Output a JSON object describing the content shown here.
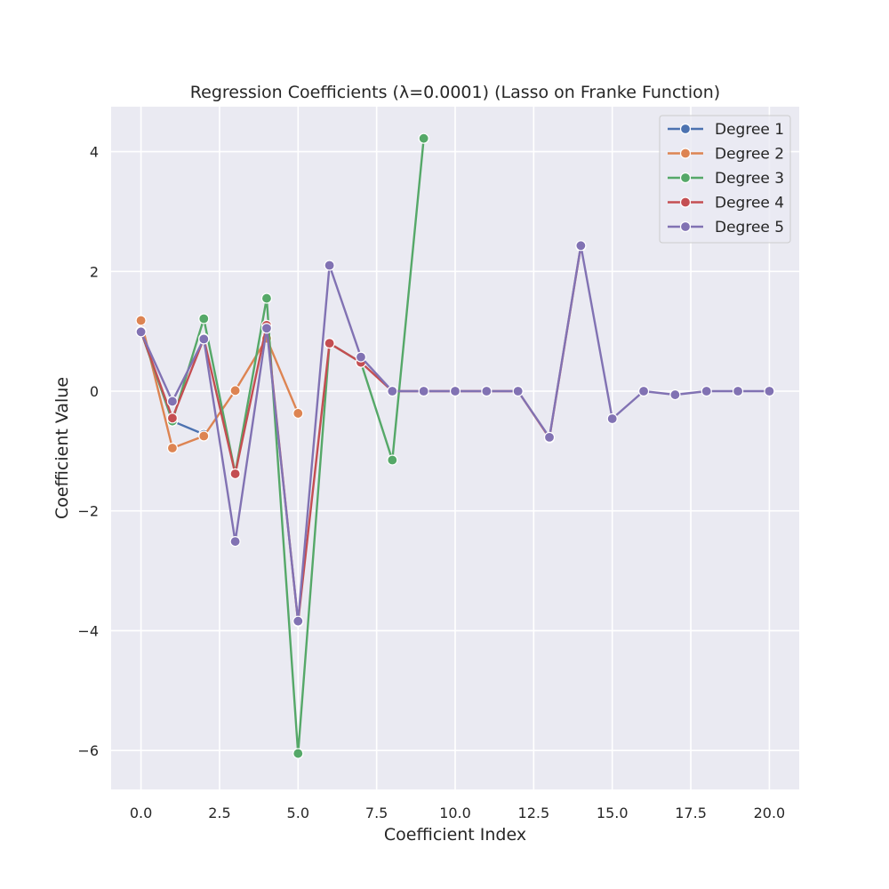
{
  "chart_data": {
    "type": "line",
    "title": "Regression Coefficients (λ=0.0001) (Lasso on Franke Function)",
    "xlabel": "Coefficient Index",
    "ylabel": "Coefficient Value",
    "xlim": [
      -0.95,
      20.95
    ],
    "ylim": [
      -6.65,
      4.75
    ],
    "xticks": [
      0.0,
      2.5,
      5.0,
      7.5,
      10.0,
      12.5,
      15.0,
      17.5,
      20.0
    ],
    "xtick_labels": [
      "0.0",
      "2.5",
      "5.0",
      "7.5",
      "10.0",
      "12.5",
      "15.0",
      "17.5",
      "20.0"
    ],
    "yticks": [
      -6,
      -4,
      -2,
      0,
      2,
      4
    ],
    "ytick_labels": [
      "−6",
      "−4",
      "−2",
      "0",
      "2",
      "4"
    ],
    "grid": true,
    "legend_position": "top-right",
    "background_color": "#eaeaf2",
    "series": [
      {
        "name": "Degree 1",
        "color": "#4c72b0",
        "x": [
          0,
          1,
          2
        ],
        "y": [
          1.0,
          -0.5,
          -0.72
        ]
      },
      {
        "name": "Degree 2",
        "color": "#dd8452",
        "x": [
          0,
          1,
          2,
          3,
          4,
          5
        ],
        "y": [
          1.18,
          -0.95,
          -0.75,
          0.01,
          0.88,
          -0.37
        ]
      },
      {
        "name": "Degree 3",
        "color": "#55a868",
        "x": [
          0,
          1,
          2,
          3,
          4,
          5,
          6,
          7,
          8,
          9
        ],
        "y": [
          1.0,
          -0.5,
          1.21,
          -1.37,
          1.55,
          -6.05,
          0.8,
          0.48,
          -1.15,
          4.22
        ]
      },
      {
        "name": "Degree 4",
        "color": "#c44e52",
        "x": [
          0,
          1,
          2,
          3,
          4,
          5,
          6,
          7,
          8,
          9,
          10,
          11,
          12,
          13,
          14
        ],
        "y": [
          1.0,
          -0.45,
          0.88,
          -1.38,
          1.1,
          -3.85,
          0.8,
          0.48,
          0.0,
          0.0,
          0.0,
          0.0,
          0.0,
          -0.78,
          2.42
        ]
      },
      {
        "name": "Degree 5",
        "color": "#8172b3",
        "x": [
          0,
          1,
          2,
          3,
          4,
          5,
          6,
          7,
          8,
          9,
          10,
          11,
          12,
          13,
          14,
          15,
          16,
          17,
          18,
          19,
          20
        ],
        "y": [
          0.99,
          -0.17,
          0.87,
          -2.51,
          1.05,
          -3.84,
          2.1,
          0.57,
          0.0,
          0.0,
          0.0,
          0.0,
          0.0,
          -0.77,
          2.43,
          -0.46,
          0.0,
          -0.06,
          0.0,
          0.0,
          0.0
        ]
      }
    ]
  }
}
